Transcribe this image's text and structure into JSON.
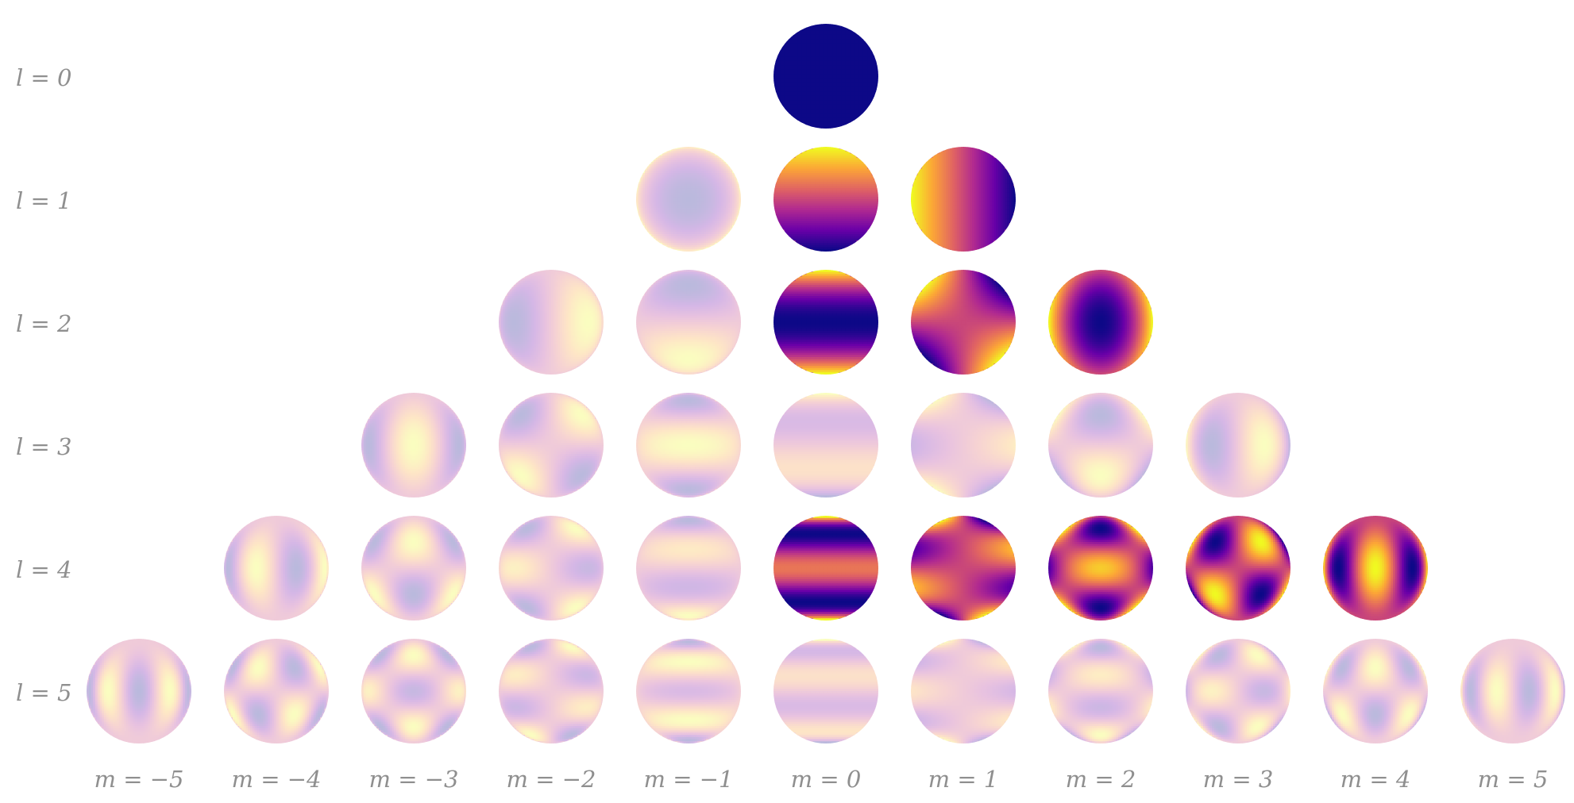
{
  "figure": {
    "row_labels": [
      "l = 0",
      "l = 1",
      "l = 2",
      "l = 3",
      "l = 4",
      "l = 5"
    ],
    "column_labels": [
      "m = −5",
      "m = −4",
      "m = −3",
      "m = −2",
      "m = −1",
      "m = 0",
      "m = 1",
      "m = 2",
      "m = 3",
      "m = 4",
      "m = 5"
    ],
    "colormap": [
      "#0d0887",
      "#6a00a8",
      "#b12a90",
      "#e16462",
      "#fca636",
      "#f0f921"
    ],
    "faded_opacity": 0.28,
    "cells": [
      {
        "l": 0,
        "m": 0,
        "emphasized": true
      },
      {
        "l": 1,
        "m": -1,
        "emphasized": false
      },
      {
        "l": 1,
        "m": 0,
        "emphasized": true
      },
      {
        "l": 1,
        "m": 1,
        "emphasized": true
      },
      {
        "l": 2,
        "m": -2,
        "emphasized": false
      },
      {
        "l": 2,
        "m": -1,
        "emphasized": false
      },
      {
        "l": 2,
        "m": 0,
        "emphasized": true
      },
      {
        "l": 2,
        "m": 1,
        "emphasized": true
      },
      {
        "l": 2,
        "m": 2,
        "emphasized": true
      },
      {
        "l": 3,
        "m": -3,
        "emphasized": false
      },
      {
        "l": 3,
        "m": -2,
        "emphasized": false
      },
      {
        "l": 3,
        "m": -1,
        "emphasized": false
      },
      {
        "l": 3,
        "m": 0,
        "emphasized": false
      },
      {
        "l": 3,
        "m": 1,
        "emphasized": false
      },
      {
        "l": 3,
        "m": 2,
        "emphasized": false
      },
      {
        "l": 3,
        "m": 3,
        "emphasized": false
      },
      {
        "l": 4,
        "m": -4,
        "emphasized": false
      },
      {
        "l": 4,
        "m": -3,
        "emphasized": false
      },
      {
        "l": 4,
        "m": -2,
        "emphasized": false
      },
      {
        "l": 4,
        "m": -1,
        "emphasized": false
      },
      {
        "l": 4,
        "m": 0,
        "emphasized": true
      },
      {
        "l": 4,
        "m": 1,
        "emphasized": true
      },
      {
        "l": 4,
        "m": 2,
        "emphasized": true
      },
      {
        "l": 4,
        "m": 3,
        "emphasized": true
      },
      {
        "l": 4,
        "m": 4,
        "emphasized": true
      },
      {
        "l": 5,
        "m": -5,
        "emphasized": false
      },
      {
        "l": 5,
        "m": -4,
        "emphasized": false
      },
      {
        "l": 5,
        "m": -3,
        "emphasized": false
      },
      {
        "l": 5,
        "m": -2,
        "emphasized": false
      },
      {
        "l": 5,
        "m": -1,
        "emphasized": false
      },
      {
        "l": 5,
        "m": 0,
        "emphasized": false
      },
      {
        "l": 5,
        "m": 1,
        "emphasized": false
      },
      {
        "l": 5,
        "m": 2,
        "emphasized": false
      },
      {
        "l": 5,
        "m": 3,
        "emphasized": false
      },
      {
        "l": 5,
        "m": 4,
        "emphasized": false
      },
      {
        "l": 5,
        "m": 5,
        "emphasized": false
      }
    ]
  }
}
